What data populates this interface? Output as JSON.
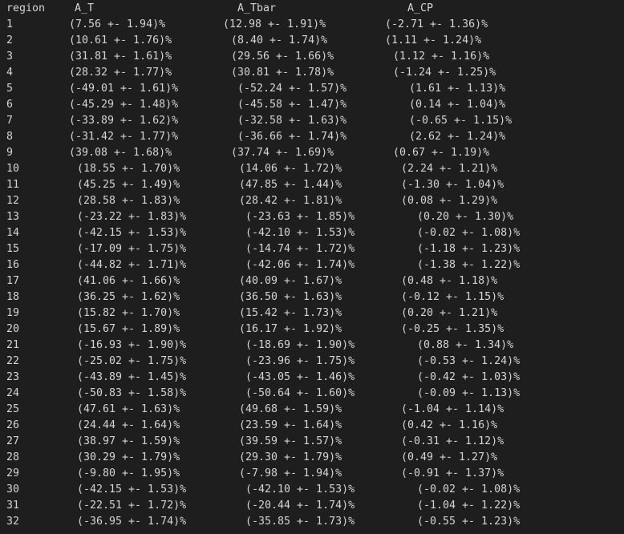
{
  "header": {
    "region": "region",
    "a_t": "A_T",
    "a_tbar": "A_Tbar",
    "a_cp": "A_CP"
  },
  "rows": [
    {
      "region": "1",
      "a_t": "(7.56 +- 1.94)%",
      "a_tbar": "(12.98 +- 1.91)%",
      "a_cp": "(-2.71 +- 1.36)%"
    },
    {
      "region": "2",
      "a_t": "(10.61 +- 1.76)%",
      "a_tbar": "(8.40 +- 1.74)%",
      "a_cp": "(1.11 +- 1.24)%"
    },
    {
      "region": "3",
      "a_t": "(31.81 +- 1.61)%",
      "a_tbar": "(29.56 +- 1.66)%",
      "a_cp": "(1.12 +- 1.16)%"
    },
    {
      "region": "4",
      "a_t": "(28.32 +- 1.77)%",
      "a_tbar": "(30.81 +- 1.78)%",
      "a_cp": "(-1.24 +- 1.25)%"
    },
    {
      "region": "5",
      "a_t": "(-49.01 +- 1.61)%",
      "a_tbar": "(-52.24 +- 1.57)%",
      "a_cp": "(1.61 +- 1.13)%"
    },
    {
      "region": "6",
      "a_t": "(-45.29 +- 1.48)%",
      "a_tbar": "(-45.58 +- 1.47)%",
      "a_cp": "(0.14 +- 1.04)%"
    },
    {
      "region": "7",
      "a_t": "(-33.89 +- 1.62)%",
      "a_tbar": "(-32.58 +- 1.63)%",
      "a_cp": "(-0.65 +- 1.15)%"
    },
    {
      "region": "8",
      "a_t": "(-31.42 +- 1.77)%",
      "a_tbar": "(-36.66 +- 1.74)%",
      "a_cp": "(2.62 +- 1.24)%"
    },
    {
      "region": "9",
      "a_t": "(39.08 +- 1.68)%",
      "a_tbar": "(37.74 +- 1.69)%",
      "a_cp": "(0.67 +- 1.19)%"
    },
    {
      "region": "10",
      "a_t": "(18.55 +- 1.70)%",
      "a_tbar": "(14.06 +- 1.72)%",
      "a_cp": "(2.24 +- 1.21)%"
    },
    {
      "region": "11",
      "a_t": "(45.25 +- 1.49)%",
      "a_tbar": "(47.85 +- 1.44)%",
      "a_cp": "(-1.30 +- 1.04)%"
    },
    {
      "region": "12",
      "a_t": "(28.58 +- 1.83)%",
      "a_tbar": "(28.42 +- 1.81)%",
      "a_cp": "(0.08 +- 1.29)%"
    },
    {
      "region": "13",
      "a_t": "(-23.22 +- 1.83)%",
      "a_tbar": "(-23.63 +- 1.85)%",
      "a_cp": "(0.20 +- 1.30)%"
    },
    {
      "region": "14",
      "a_t": "(-42.15 +- 1.53)%",
      "a_tbar": "(-42.10 +- 1.53)%",
      "a_cp": "(-0.02 +- 1.08)%"
    },
    {
      "region": "15",
      "a_t": "(-17.09 +- 1.75)%",
      "a_tbar": "(-14.74 +- 1.72)%",
      "a_cp": "(-1.18 +- 1.23)%"
    },
    {
      "region": "16",
      "a_t": "(-44.82 +- 1.71)%",
      "a_tbar": "(-42.06 +- 1.74)%",
      "a_cp": "(-1.38 +- 1.22)%"
    },
    {
      "region": "17",
      "a_t": "(41.06 +- 1.66)%",
      "a_tbar": "(40.09 +- 1.67)%",
      "a_cp": "(0.48 +- 1.18)%"
    },
    {
      "region": "18",
      "a_t": "(36.25 +- 1.62)%",
      "a_tbar": "(36.50 +- 1.63)%",
      "a_cp": "(-0.12 +- 1.15)%"
    },
    {
      "region": "19",
      "a_t": "(15.82 +- 1.70)%",
      "a_tbar": "(15.42 +- 1.73)%",
      "a_cp": "(0.20 +- 1.21)%"
    },
    {
      "region": "20",
      "a_t": "(15.67 +- 1.89)%",
      "a_tbar": "(16.17 +- 1.92)%",
      "a_cp": "(-0.25 +- 1.35)%"
    },
    {
      "region": "21",
      "a_t": "(-16.93 +- 1.90)%",
      "a_tbar": "(-18.69 +- 1.90)%",
      "a_cp": "(0.88 +- 1.34)%"
    },
    {
      "region": "22",
      "a_t": "(-25.02 +- 1.75)%",
      "a_tbar": "(-23.96 +- 1.75)%",
      "a_cp": "(-0.53 +- 1.24)%"
    },
    {
      "region": "23",
      "a_t": "(-43.89 +- 1.45)%",
      "a_tbar": "(-43.05 +- 1.46)%",
      "a_cp": "(-0.42 +- 1.03)%"
    },
    {
      "region": "24",
      "a_t": "(-50.83 +- 1.58)%",
      "a_tbar": "(-50.64 +- 1.60)%",
      "a_cp": "(-0.09 +- 1.13)%"
    },
    {
      "region": "25",
      "a_t": "(47.61 +- 1.63)%",
      "a_tbar": "(49.68 +- 1.59)%",
      "a_cp": "(-1.04 +- 1.14)%"
    },
    {
      "region": "26",
      "a_t": "(24.44 +- 1.64)%",
      "a_tbar": "(23.59 +- 1.64)%",
      "a_cp": "(0.42 +- 1.16)%"
    },
    {
      "region": "27",
      "a_t": "(38.97 +- 1.59)%",
      "a_tbar": "(39.59 +- 1.57)%",
      "a_cp": "(-0.31 +- 1.12)%"
    },
    {
      "region": "28",
      "a_t": "(30.29 +- 1.79)%",
      "a_tbar": "(29.30 +- 1.79)%",
      "a_cp": "(0.49 +- 1.27)%"
    },
    {
      "region": "29",
      "a_t": "(-9.80 +- 1.95)%",
      "a_tbar": "(-7.98 +- 1.94)%",
      "a_cp": "(-0.91 +- 1.37)%"
    },
    {
      "region": "30",
      "a_t": "(-42.15 +- 1.53)%",
      "a_tbar": "(-42.10 +- 1.53)%",
      "a_cp": "(-0.02 +- 1.08)%"
    },
    {
      "region": "31",
      "a_t": "(-22.51 +- 1.72)%",
      "a_tbar": "(-20.44 +- 1.74)%",
      "a_cp": "(-1.04 +- 1.22)%"
    },
    {
      "region": "32",
      "a_t": "(-36.95 +- 1.74)%",
      "a_tbar": "(-35.85 +- 1.73)%",
      "a_cp": "(-0.55 +- 1.23)%"
    }
  ],
  "colors": {
    "background": "#1e1e1e",
    "text": "#d4d4d4"
  }
}
